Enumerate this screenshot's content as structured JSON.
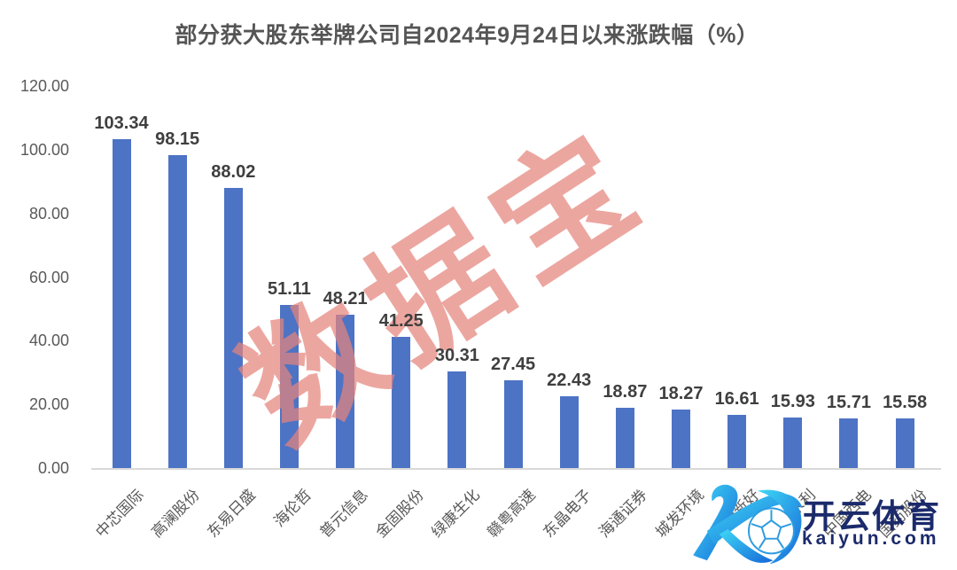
{
  "title": "部分获大股东举牌公司自2024年9月24日以来涨跌幅（%）",
  "chart_data": {
    "type": "bar",
    "title": "部分获大股东举牌公司自2024年9月24日以来涨跌幅（%）",
    "categories": [
      "中芯国际",
      "高澜股份",
      "东易日盛",
      "海伦哲",
      "普元信息",
      "金固股份",
      "绿康生化",
      "赣粤高速",
      "东晶电子",
      "海通证券",
      "城发环境",
      "全新好",
      "钱江水利",
      "中国西电",
      "国药股份"
    ],
    "values": [
      103.34,
      98.15,
      88.02,
      51.11,
      48.21,
      41.25,
      30.31,
      27.45,
      22.43,
      18.87,
      18.27,
      16.61,
      15.93,
      15.71,
      15.58
    ],
    "xlabel": "",
    "ylabel": "",
    "ylim": [
      0,
      120
    ],
    "yticks": [
      "120.00",
      "100.00",
      "80.00",
      "60.00",
      "40.00",
      "20.00",
      "0.00"
    ],
    "grid": false,
    "legend": false,
    "value_labels": true,
    "bar_color": "#4D73C5",
    "axis_line_color": "#d9d9d9",
    "tick_label_color": "#595959",
    "value_label_color": "#3f3f3f"
  },
  "watermark": {
    "text": "数据宝",
    "color": "rgba(229,131,124,0.72)"
  },
  "logo": {
    "brand_cn": "开云体育",
    "brand_url": "kaiyun.com",
    "icon": "kaiyun-k-football",
    "text_color": "#1b2a6b",
    "gradient": [
      "#3FD9F6",
      "#1668D8"
    ]
  }
}
